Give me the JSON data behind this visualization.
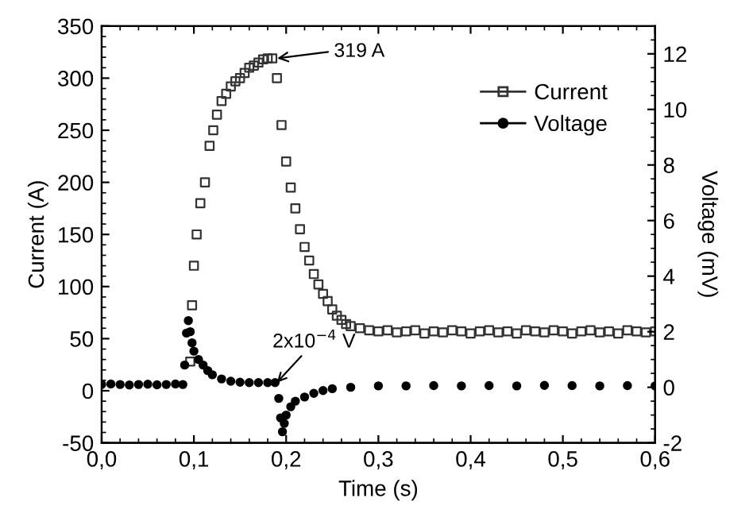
{
  "chart_data": {
    "type": "scatter",
    "xlabel": "Time (s)",
    "ylabel": "Current (A)",
    "y2label": "Voltage (mV)",
    "xlim": [
      0,
      0.6
    ],
    "xticks": [
      {
        "value": 0,
        "label": "0,0"
      },
      {
        "value": 0.1,
        "label": "0,1"
      },
      {
        "value": 0.2,
        "label": "0,2"
      },
      {
        "value": 0.3,
        "label": "0,3"
      },
      {
        "value": 0.4,
        "label": "0,4"
      },
      {
        "value": 0.5,
        "label": "0,5"
      },
      {
        "value": 0.6,
        "label": "0,6"
      }
    ],
    "ylim": [
      -50,
      350
    ],
    "yticks": [
      -50,
      0,
      50,
      100,
      150,
      200,
      250,
      300,
      350
    ],
    "y2lim": [
      -2,
      13
    ],
    "y2ticks": [
      -2,
      0,
      2,
      4,
      6,
      8,
      10,
      12
    ],
    "legend": "right",
    "grid": false,
    "series": [
      {
        "name": "Current",
        "color": "#333333",
        "marker": "square",
        "x": [
          0.096,
          0.098,
          0.1,
          0.103,
          0.107,
          0.112,
          0.117,
          0.121,
          0.125,
          0.13,
          0.135,
          0.14,
          0.145,
          0.15,
          0.155,
          0.16,
          0.165,
          0.17,
          0.175,
          0.18,
          0.185,
          0.19,
          0.195,
          0.2,
          0.205,
          0.21,
          0.215,
          0.22,
          0.225,
          0.23,
          0.235,
          0.24,
          0.245,
          0.25,
          0.255,
          0.26,
          0.265,
          0.27,
          0.28,
          0.29,
          0.3,
          0.31,
          0.32,
          0.33,
          0.34,
          0.35,
          0.36,
          0.37,
          0.38,
          0.39,
          0.4,
          0.41,
          0.42,
          0.43,
          0.44,
          0.45,
          0.46,
          0.47,
          0.48,
          0.49,
          0.5,
          0.51,
          0.52,
          0.53,
          0.54,
          0.55,
          0.56,
          0.57,
          0.58,
          0.59,
          0.6
        ],
        "values": [
          28,
          82,
          120,
          150,
          180,
          200,
          235,
          250,
          265,
          278,
          285,
          292,
          297,
          300,
          305,
          310,
          312,
          315,
          318,
          319,
          319,
          300,
          255,
          220,
          195,
          175,
          155,
          138,
          125,
          112,
          102,
          93,
          86,
          78,
          72,
          68,
          64,
          62,
          60,
          58,
          57,
          58,
          56,
          57,
          58,
          55,
          57,
          56,
          58,
          57,
          55,
          57,
          58,
          56,
          57,
          55,
          58,
          57,
          56,
          58,
          57,
          55,
          57,
          58,
          56,
          57,
          55,
          58,
          57,
          56,
          57
        ]
      },
      {
        "name": "Voltage",
        "color": "#000000",
        "marker": "circle",
        "axis": "y2",
        "x": [
          0.0,
          0.01,
          0.02,
          0.03,
          0.04,
          0.05,
          0.06,
          0.07,
          0.08,
          0.088,
          0.09,
          0.092,
          0.094,
          0.096,
          0.098,
          0.1,
          0.105,
          0.11,
          0.115,
          0.12,
          0.13,
          0.14,
          0.15,
          0.16,
          0.17,
          0.18,
          0.188,
          0.192,
          0.194,
          0.196,
          0.198,
          0.2,
          0.205,
          0.21,
          0.22,
          0.23,
          0.24,
          0.25,
          0.27,
          0.3,
          0.33,
          0.36,
          0.39,
          0.42,
          0.45,
          0.48,
          0.51,
          0.54,
          0.57,
          0.6
        ],
        "values": [
          0.1,
          0.12,
          0.1,
          0.08,
          0.1,
          0.11,
          0.09,
          0.1,
          0.12,
          0.1,
          0.8,
          1.95,
          2.4,
          2.0,
          1.6,
          1.3,
          1.0,
          0.8,
          0.6,
          0.45,
          0.3,
          0.22,
          0.18,
          0.17,
          0.17,
          0.17,
          0.17,
          -0.4,
          -1.1,
          -1.6,
          -1.3,
          -1.0,
          -0.7,
          -0.5,
          -0.35,
          -0.22,
          -0.12,
          -0.05,
          0.0,
          0.05,
          0.05,
          0.06,
          0.05,
          0.06,
          0.05,
          0.07,
          0.06,
          0.05,
          0.06,
          0.05
        ]
      }
    ],
    "annotations": [
      "319 A",
      {
        "text": "2x10$^{−4}$ V",
        "x": 0.19,
        "y": 0.17
      }
    ]
  }
}
